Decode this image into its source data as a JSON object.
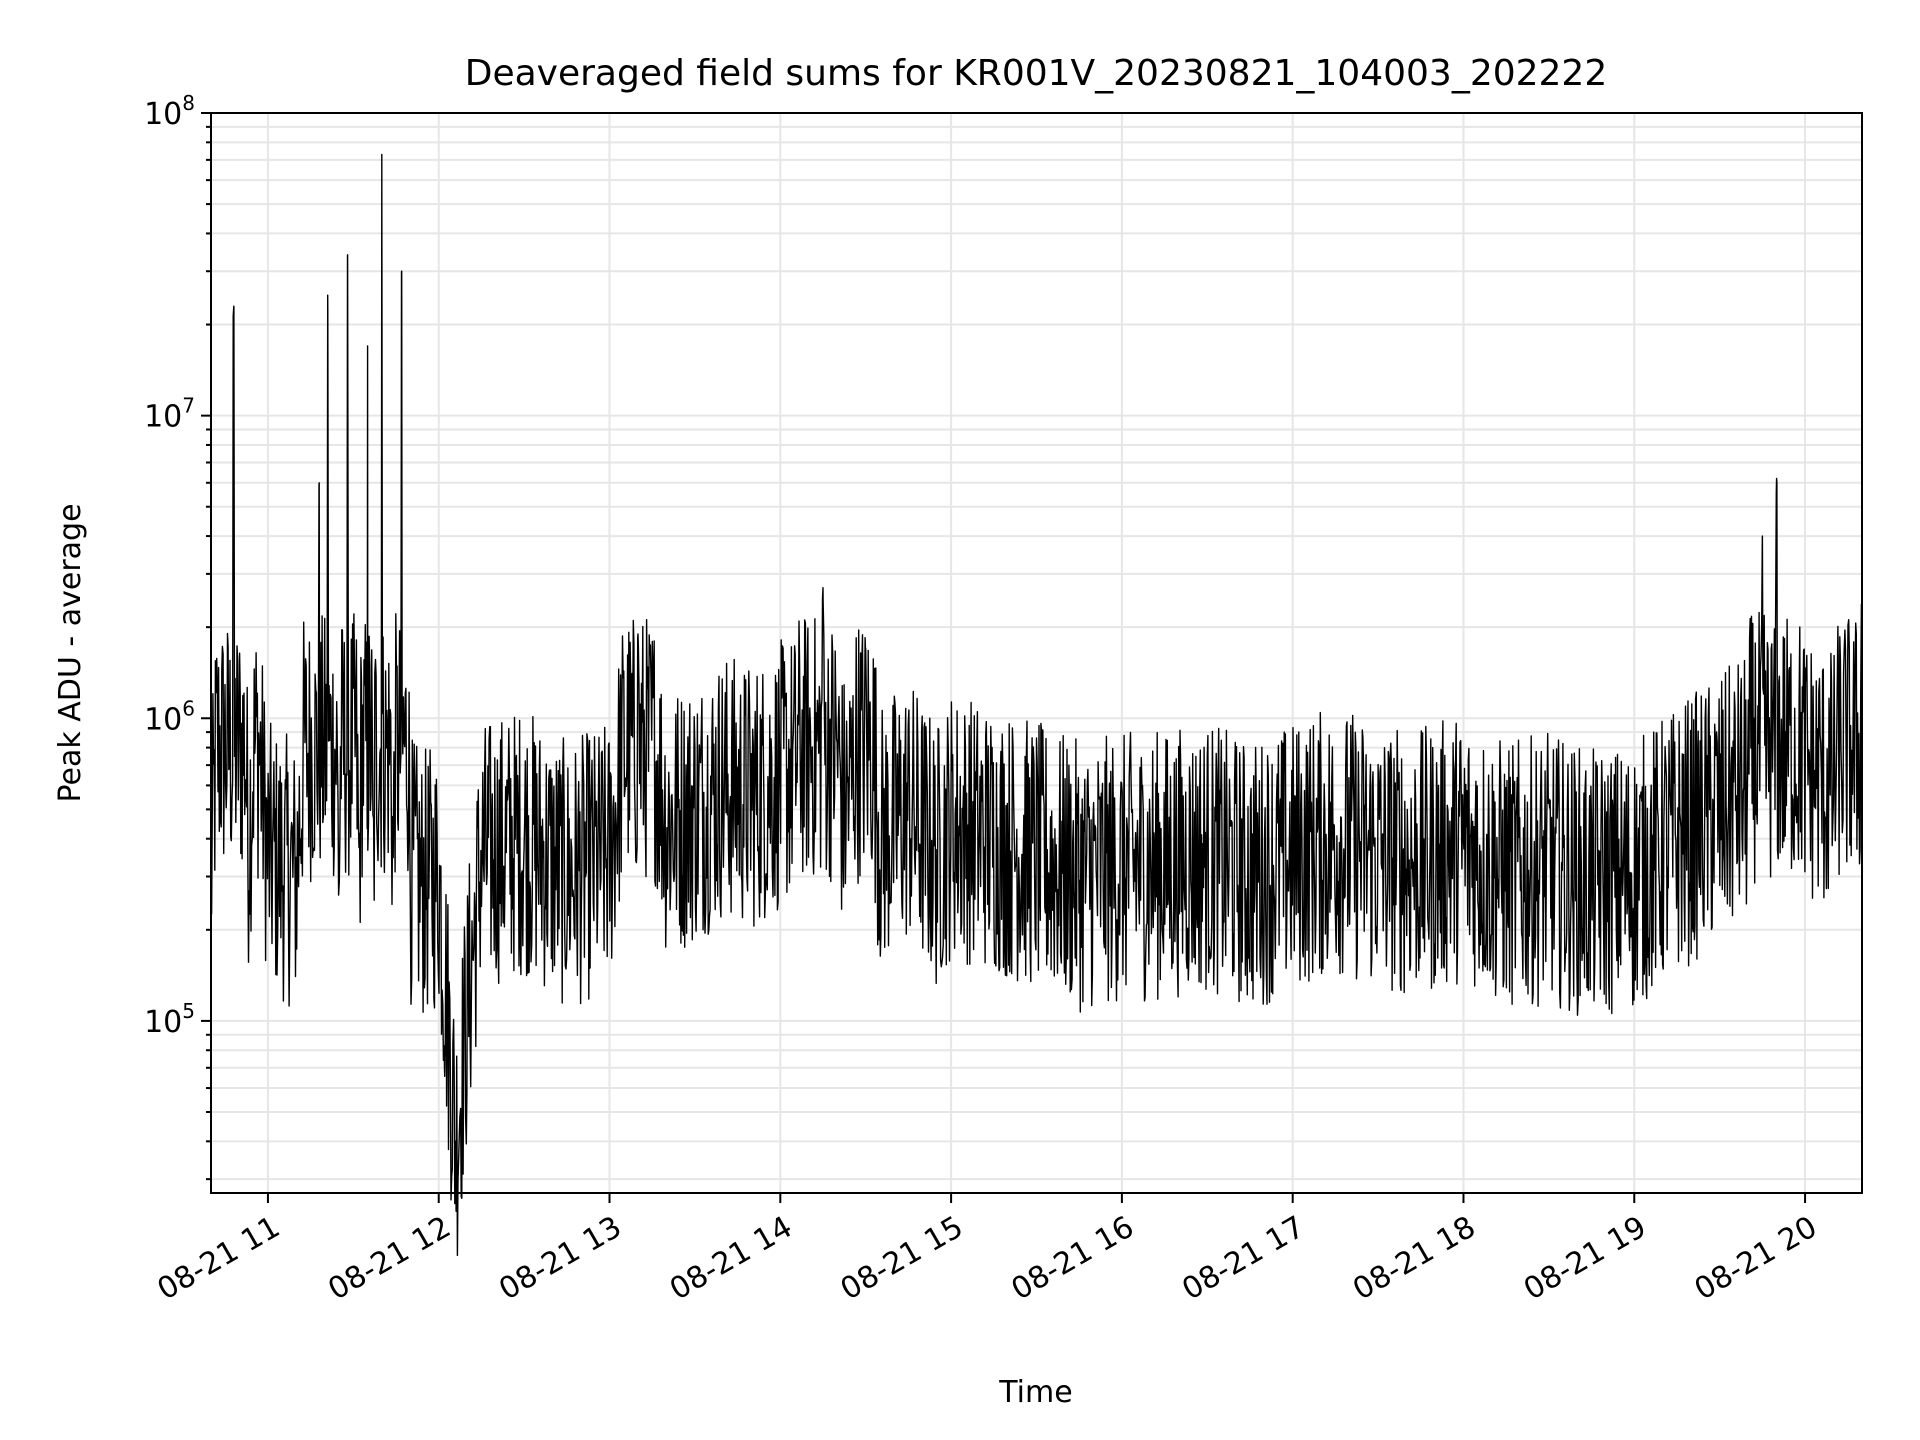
{
  "chart_data": {
    "type": "line",
    "title": "Deaveraged field sums for KR001V_20230821_104003_202222",
    "xlabel": "Time",
    "ylabel": "Peak ADU - average",
    "yscale": "log",
    "ylim": [
      27000,
      100000000
    ],
    "xlim": [
      "2023-08-21 10:40",
      "2023-08-21 20:20"
    ],
    "grid": true,
    "line_color": "#000000",
    "grid_color": "#e6e6e6",
    "x_tick_labels": [
      "08-21 11",
      "08-21 12",
      "08-21 13",
      "08-21 14",
      "08-21 15",
      "08-21 16",
      "08-21 17",
      "08-21 18",
      "08-21 19",
      "08-21 20"
    ],
    "y_tick_labels": [
      {
        "base": "10",
        "exp": "5"
      },
      {
        "base": "10",
        "exp": "6"
      },
      {
        "base": "10",
        "exp": "7"
      },
      {
        "base": "10",
        "exp": "8"
      }
    ],
    "series": [
      {
        "x": [
          "2023-08-21 10:40",
          "2023-08-21 10:48",
          "2023-08-21 10:53",
          "2023-08-21 10:56",
          "2023-08-21 11:00",
          "2023-08-21 11:10",
          "2023-08-21 11:18",
          "2023-08-21 11:21",
          "2023-08-21 11:25",
          "2023-08-21 11:28",
          "2023-08-21 11:32",
          "2023-08-21 11:35",
          "2023-08-21 11:37",
          "2023-08-21 11:40",
          "2023-08-21 11:44",
          "2023-08-21 11:47",
          "2023-08-21 11:50",
          "2023-08-21 11:54",
          "2023-08-21 12:00",
          "2023-08-21 12:06",
          "2023-08-21 12:15",
          "2023-08-21 12:30",
          "2023-08-21 12:45",
          "2023-08-21 13:00",
          "2023-08-21 13:10",
          "2023-08-21 13:20",
          "2023-08-21 13:30",
          "2023-08-21 13:40",
          "2023-08-21 13:50",
          "2023-08-21 14:05",
          "2023-08-21 14:15",
          "2023-08-21 14:22",
          "2023-08-21 14:25",
          "2023-08-21 14:30",
          "2023-08-21 14:35",
          "2023-08-21 14:45",
          "2023-08-21 14:55",
          "2023-08-21 15:00",
          "2023-08-21 15:15",
          "2023-08-21 15:30",
          "2023-08-21 15:45",
          "2023-08-21 16:00",
          "2023-08-21 16:15",
          "2023-08-21 16:30",
          "2023-08-21 16:45",
          "2023-08-21 17:00",
          "2023-08-21 17:15",
          "2023-08-21 17:30",
          "2023-08-21 17:45",
          "2023-08-21 18:00",
          "2023-08-21 18:15",
          "2023-08-21 18:30",
          "2023-08-21 18:45",
          "2023-08-21 19:00",
          "2023-08-21 19:15",
          "2023-08-21 19:30",
          "2023-08-21 19:40",
          "2023-08-21 19:45",
          "2023-08-21 19:50",
          "2023-08-21 20:00",
          "2023-08-21 20:10",
          "2023-08-21 20:20"
        ],
        "y": [
          300000,
          23000000,
          400000,
          1000000,
          350000,
          300000,
          6000000,
          25000000,
          300000,
          34000000,
          280000,
          17000000,
          250000,
          73000000,
          300000,
          30000000,
          320000,
          280000,
          300000,
          40000,
          350000,
          400000,
          300000,
          350000,
          1900000,
          450000,
          500000,
          600000,
          550000,
          700000,
          2700000,
          500000,
          600000,
          1700000,
          400000,
          500000,
          350000,
          450000,
          400000,
          350000,
          300000,
          320000,
          330000,
          350000,
          300000,
          350000,
          400000,
          350000,
          330000,
          380000,
          300000,
          320000,
          280000,
          300000,
          400000,
          500000,
          600000,
          4000000,
          6200000,
          700000,
          600000,
          2500000
        ]
      }
    ]
  }
}
